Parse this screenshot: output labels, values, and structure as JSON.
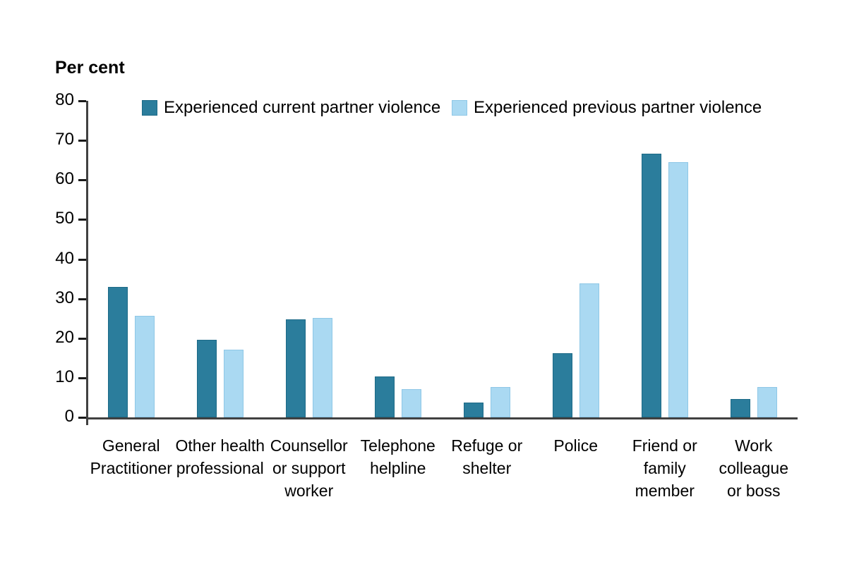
{
  "chart_data": {
    "type": "bar",
    "title": "Per cent",
    "ylabel": "Per cent",
    "ylim": [
      0,
      80
    ],
    "yticks": [
      0,
      10,
      20,
      30,
      40,
      50,
      60,
      70,
      80
    ],
    "grid": false,
    "legend_position": "top",
    "axis_color": "#404040",
    "tick_color": "#1a1a1a",
    "text_color": "#000000",
    "categories": [
      "General\nPractitioner",
      "Other health\nprofessional",
      "Counsellor\nor support\nworker",
      "Telephone\nhelpline",
      "Refuge or\nshelter",
      "Police",
      "Friend or\nfamily\nmember",
      "Work\ncolleague\nor boss"
    ],
    "series": [
      {
        "name": "Experienced current partner violence",
        "color": "#2B7D9C",
        "border_color": "#1D6A87",
        "values": [
          33.0,
          19.6,
          24.7,
          10.4,
          3.8,
          16.2,
          66.6,
          4.6
        ]
      },
      {
        "name": "Experienced previous partner violence",
        "color": "#AAD9F2",
        "border_color": "#8EC7E6",
        "values": [
          25.7,
          17.1,
          25.1,
          7.2,
          7.7,
          33.8,
          64.5,
          7.7
        ]
      }
    ]
  }
}
